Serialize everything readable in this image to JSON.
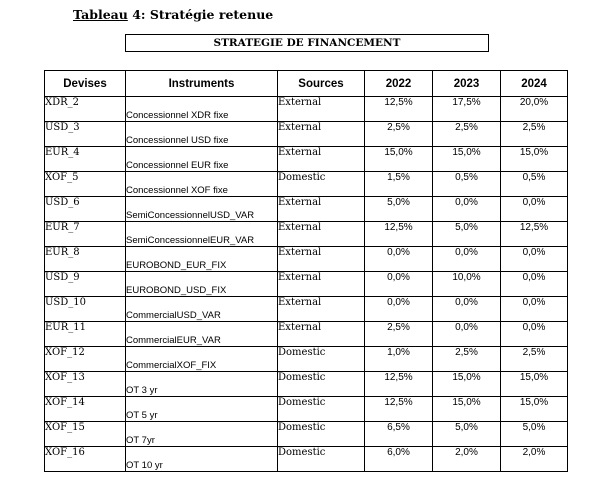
{
  "caption": {
    "prefix": "Tableau",
    "rest": " 4: Stratégie retenue"
  },
  "title": "STRATEGIE DE FINANCEMENT",
  "headers": [
    "Devises",
    "Instruments",
    "Sources",
    "2022",
    "2023",
    "2024"
  ],
  "rows": [
    [
      "XDR_2",
      "Concessionnel XDR fixe",
      "External",
      "12,5%",
      "17,5%",
      "20,0%"
    ],
    [
      "USD_3",
      "Concessionnel USD fixe",
      "External",
      "2,5%",
      "2,5%",
      "2,5%"
    ],
    [
      "EUR_4",
      "Concessionnel EUR fixe",
      "External",
      "15,0%",
      "15,0%",
      "15,0%"
    ],
    [
      "XOF_5",
      "Concessionnel XOF fixe",
      "Domestic",
      "1,5%",
      "0,5%",
      "0,5%"
    ],
    [
      "USD_6",
      "SemiConcessionnelUSD_VAR",
      "External",
      "5,0%",
      "0,0%",
      "0,0%"
    ],
    [
      "EUR_7",
      "SemiConcessionnelEUR_VAR",
      "External",
      "12,5%",
      "5,0%",
      "12,5%"
    ],
    [
      "EUR_8",
      "EUROBOND_EUR_FIX",
      "External",
      "0,0%",
      "0,0%",
      "0,0%"
    ],
    [
      "USD_9",
      "EUROBOND_USD_FIX",
      "External",
      "0,0%",
      "10,0%",
      "0,0%"
    ],
    [
      "USD_10",
      "CommercialUSD_VAR",
      "External",
      "0,0%",
      "0,0%",
      "0,0%"
    ],
    [
      "EUR_11",
      "CommercialEUR_VAR",
      "External",
      "2,5%",
      "0,0%",
      "0,0%"
    ],
    [
      "XOF_12",
      "CommercialXOF_FIX",
      "Domestic",
      "1,0%",
      "2,5%",
      "2,5%"
    ],
    [
      "XOF_13",
      "OT 3 yr",
      "Domestic",
      "12,5%",
      "15,0%",
      "15,0%"
    ],
    [
      "XOF_14",
      "OT 5 yr",
      "Domestic",
      "12,5%",
      "15,0%",
      "15,0%"
    ],
    [
      "XOF_15",
      "OT 7yr",
      "Domestic",
      "6,5%",
      "5,0%",
      "5,0%"
    ],
    [
      "XOF_16",
      "OT 10 yr",
      "Domestic",
      "6,0%",
      "2,0%",
      "2,0%"
    ]
  ]
}
